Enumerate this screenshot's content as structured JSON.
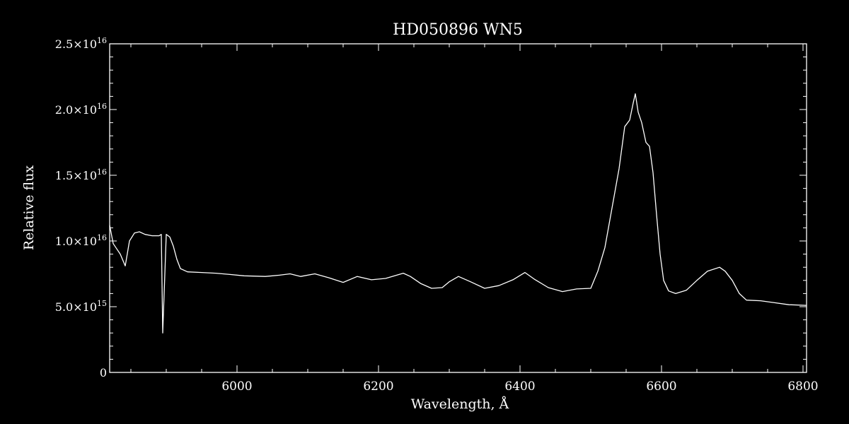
{
  "chart_data": {
    "type": "line",
    "title": "HD050896  WN5",
    "xlabel": "Wavelength, Å",
    "ylabel": "Relative flux",
    "xlim": [
      5820,
      6805
    ],
    "ylim": [
      0,
      2.5e+16
    ],
    "grid": false,
    "x_ticks": [
      6000,
      6200,
      6400,
      6600,
      6800
    ],
    "x_tick_labels": [
      "6000",
      "6200",
      "6400",
      "6600",
      "6800"
    ],
    "y_ticks": [
      0,
      5000000000000000.0,
      1e+16,
      1.5e+16,
      2e+16,
      2.5e+16
    ],
    "y_tick_labels": [
      {
        "mant": "0",
        "exp": ""
      },
      {
        "mant": "5.0×10",
        "exp": "15"
      },
      {
        "mant": "1.0×10",
        "exp": "16"
      },
      {
        "mant": "1.5×10",
        "exp": "16"
      },
      {
        "mant": "2.0×10",
        "exp": "16"
      },
      {
        "mant": "2.5×10",
        "exp": "16"
      }
    ],
    "series": [
      {
        "x": [
          5820,
          5825,
          5830,
          5835,
          5842,
          5848,
          5855,
          5862,
          5870,
          5880,
          5890,
          5893,
          5895,
          5900,
          5905,
          5910,
          5915,
          5920,
          5930,
          5950,
          5970,
          5990,
          6010,
          6040,
          6060,
          6075,
          6090,
          6110,
          6130,
          6150,
          6170,
          6190,
          6210,
          6235,
          6245,
          6260,
          6275,
          6290,
          6300,
          6313,
          6330,
          6350,
          6370,
          6390,
          6407,
          6420,
          6440,
          6460,
          6480,
          6500,
          6510,
          6520,
          6530,
          6540,
          6548,
          6555,
          6560,
          6563,
          6567,
          6572,
          6578,
          6583,
          6588,
          6593,
          6598,
          6603,
          6610,
          6620,
          6635,
          6650,
          6665,
          6682,
          6690,
          6700,
          6710,
          6720,
          6740,
          6760,
          6780,
          6805
        ],
        "y": [
          1.12e+16,
          9800000000000000.0,
          9400000000000000.0,
          9000000000000000.0,
          8100000000000000.0,
          1e+16,
          1.06e+16,
          1.07e+16,
          1.05e+16,
          1.04e+16,
          1.04e+16,
          1.05e+16,
          3000000000000000.0,
          1.05e+16,
          1.03e+16,
          9600000000000000.0,
          8600000000000000.0,
          7900000000000000.0,
          7650000000000000.0,
          7600000000000000.0,
          7550000000000000.0,
          7450000000000000.0,
          7350000000000000.0,
          7300000000000000.0,
          7400000000000000.0,
          7500000000000000.0,
          7300000000000000.0,
          7500000000000000.0,
          7200000000000000.0,
          6850000000000000.0,
          7300000000000000.0,
          7050000000000000.0,
          7150000000000000.0,
          7550000000000000.0,
          7300000000000000.0,
          6750000000000000.0,
          6400000000000000.0,
          6450000000000000.0,
          6900000000000000.0,
          7300000000000000.0,
          6900000000000000.0,
          6400000000000000.0,
          6600000000000000.0,
          7050000000000000.0,
          7600000000000000.0,
          7100000000000000.0,
          6450000000000000.0,
          6150000000000000.0,
          6350000000000000.0,
          6400000000000000.0,
          7700000000000000.0,
          9500000000000000.0,
          1.25e+16,
          1.55e+16,
          1.87e+16,
          1.92e+16,
          2.05e+16,
          2.12e+16,
          1.98e+16,
          1.9e+16,
          1.75e+16,
          1.72e+16,
          1.52e+16,
          1.2e+16,
          9000000000000000.0,
          7000000000000000.0,
          6200000000000000.0,
          6000000000000000.0,
          6250000000000000.0,
          7000000000000000.0,
          7700000000000000.0,
          8000000000000000.0,
          7700000000000000.0,
          7000000000000000.0,
          6000000000000000.0,
          5500000000000000.0,
          5450000000000000.0,
          5300000000000000.0,
          5150000000000000.0,
          5100000000000000.0
        ]
      }
    ]
  }
}
